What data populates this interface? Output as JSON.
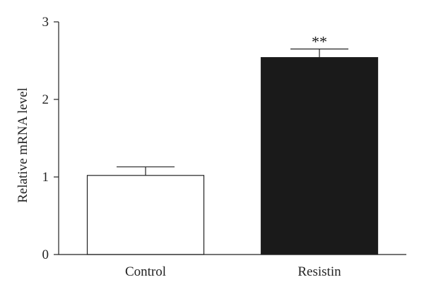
{
  "chart_data": {
    "type": "bar",
    "title": "",
    "xlabel": "",
    "ylabel": "Relative mRNA level",
    "ylim": [
      0,
      3
    ],
    "yticks": [
      0,
      1,
      2,
      3
    ],
    "categories": [
      "Control",
      "Resistin"
    ],
    "values": [
      1.02,
      2.54
    ],
    "errors": [
      0.11,
      0.11
    ],
    "bar_colors": [
      "#ffffff",
      "#1a1a1a"
    ],
    "annotations": [
      "",
      "**"
    ],
    "grid": false,
    "legend": "none"
  }
}
